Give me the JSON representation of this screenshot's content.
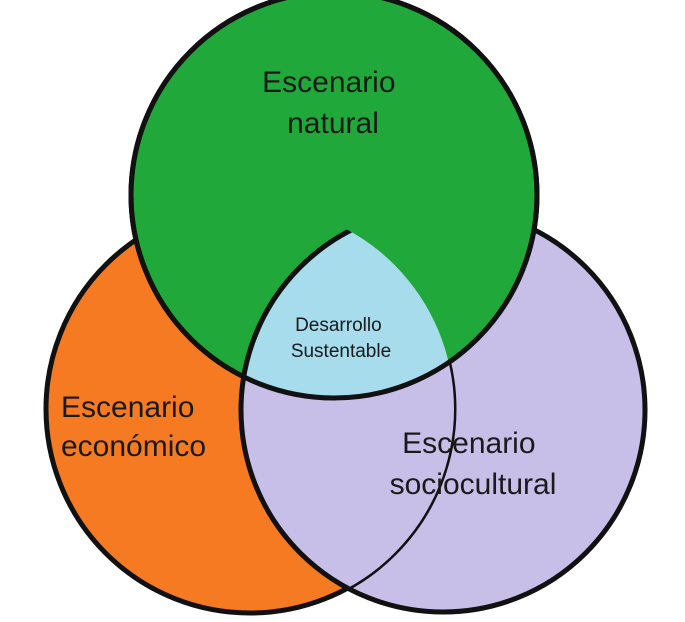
{
  "diagram": {
    "type": "venn",
    "sets": {
      "natural": {
        "lines": [
          "Escenario",
          "natural"
        ],
        "color": "#20a83a"
      },
      "economico": {
        "lines": [
          "Escenario",
          "económico"
        ],
        "color": "#f57a22"
      },
      "sociocultural": {
        "lines": [
          "Escenario",
          "sociocultural"
        ],
        "color": "#c7bfe8"
      }
    },
    "intersection": {
      "lines": [
        "Desarrollo",
        "Sustentable"
      ],
      "color": "#a6dcec"
    },
    "outline_color": "#111111"
  }
}
